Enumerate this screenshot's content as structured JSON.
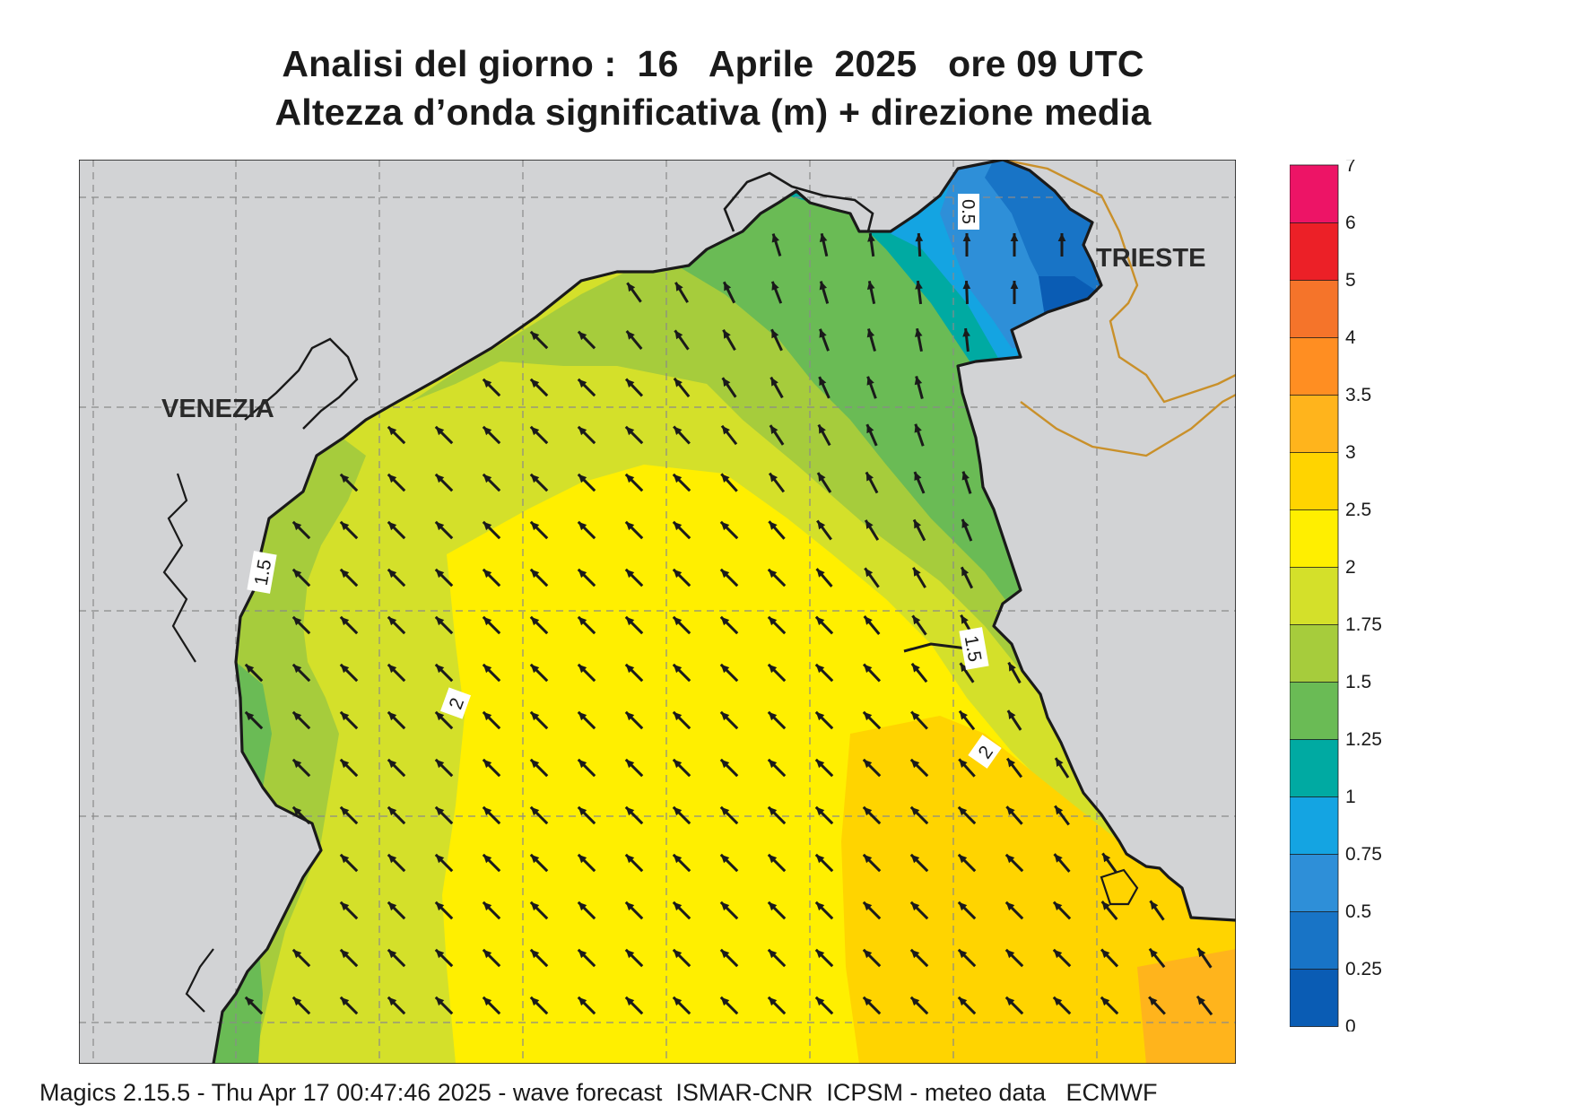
{
  "title": {
    "line1": "Analisi del giorno :  16   Aprile  2025   ore 09 UTC",
    "line2": "Altezza d’onda significativa (m) + direzione media"
  },
  "places": {
    "venezia": "VENEZIA",
    "trieste": "TRIESTE"
  },
  "contour_labels": {
    "c05": "0.5",
    "c15_west": "1.5",
    "c15_east": "1.5",
    "c2_west": "2",
    "c2_east": "2"
  },
  "legend": {
    "levels": [
      "0",
      "0.25",
      "0.5",
      "0.75",
      "1",
      "1.25",
      "1.5",
      "1.75",
      "2",
      "2.5",
      "3",
      "3.5",
      "4",
      "5",
      "6",
      "7"
    ],
    "colors": [
      "#0a5cb4",
      "#1874c6",
      "#2e8fd8",
      "#14a4e2",
      "#00aaa2",
      "#6abb55",
      "#a6cc3c",
      "#d4e02a",
      "#ffef00",
      "#ffd400",
      "#ffb41c",
      "#ff8e22",
      "#f5742a",
      "#ec2027",
      "#ed1466"
    ]
  },
  "colors": {
    "land": "#d2d3d5",
    "border": "#c9902a",
    "coast": "#1a1a1a"
  },
  "footer": "Magics 2.15.5 - Thu Apr 17 00:47:46 2025 - wave forecast  ISMAR-CNR  ICPSM - meteo data   ECMWF"
}
